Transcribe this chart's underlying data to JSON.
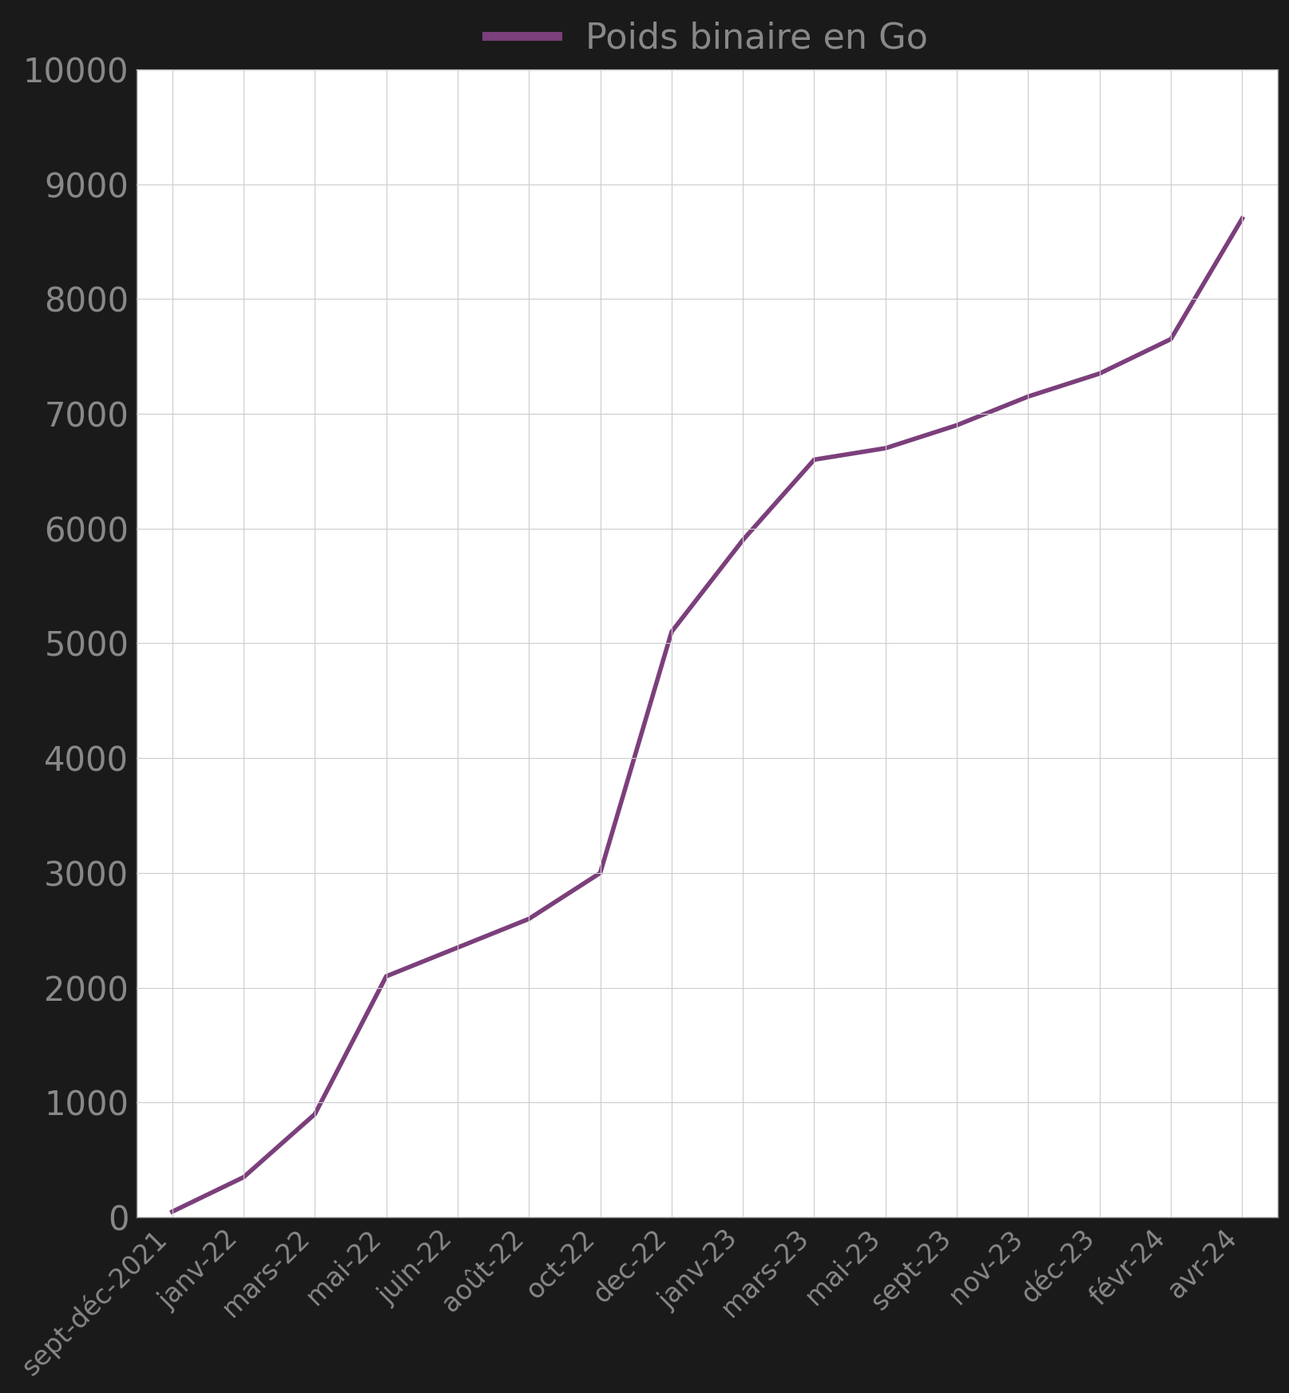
{
  "labels": [
    "sept-déc-2021",
    "janv-22",
    "mars-22",
    "mai-22",
    "juin-22",
    "août-22",
    "oct-22",
    "dec-22",
    "janv-23",
    "mars-23",
    "mai-23",
    "sept-23",
    "nov-23",
    "déc-23",
    "févr-24",
    "avr-24"
  ],
  "values": [
    50,
    350,
    900,
    2100,
    2350,
    2600,
    3000,
    5100,
    5900,
    6600,
    6700,
    6900,
    7150,
    7350,
    7650,
    8700
  ],
  "line_color": "#7B3F7B",
  "line_width": 4.0,
  "legend_label": "Poids binaire en Go",
  "legend_color": "#7B3F7B",
  "ylim": [
    0,
    10000
  ],
  "yticks": [
    0,
    1000,
    2000,
    3000,
    4000,
    5000,
    6000,
    7000,
    8000,
    9000,
    10000
  ],
  "background_color": "#1a1a1a",
  "plot_bg_color": "#ffffff",
  "grid_color": "#cccccc",
  "tick_color": "#888888",
  "label_color": "#888888",
  "legend_text_color": "#888888",
  "spine_color": "#888888"
}
